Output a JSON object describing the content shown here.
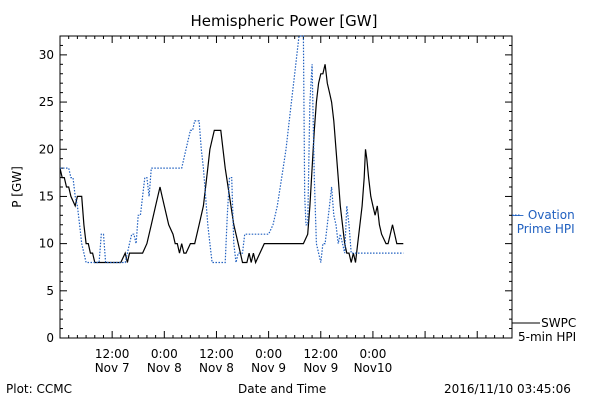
{
  "chart_data": {
    "type": "line",
    "title": "Hemispheric Power [GW]",
    "ylabel": "P [GW]",
    "xlabel": "Date and Time",
    "ylim": [
      0,
      32
    ],
    "xlim": [
      0,
      104
    ],
    "y_ticks": [
      "0",
      "5",
      "10",
      "15",
      "20",
      "25",
      "30"
    ],
    "x_tick_labels": [
      {
        "x": 12,
        "line1": "12:00",
        "line2": "Nov 7"
      },
      {
        "x": 24,
        "line1": "0:00",
        "line2": "Nov 8"
      },
      {
        "x": 36,
        "line1": "12:00",
        "line2": "Nov 8"
      },
      {
        "x": 48,
        "line1": "0:00",
        "line2": "Nov 9"
      },
      {
        "x": 60,
        "line1": "12:00",
        "line2": "Nov 9"
      },
      {
        "x": 72,
        "line1": "0:00",
        "line2": "Nov10"
      }
    ],
    "series": [
      {
        "name": "SWPC 5-min HPI",
        "color": "#000000",
        "style": "solid",
        "points": [
          [
            0,
            18
          ],
          [
            0.5,
            17
          ],
          [
            1,
            17
          ],
          [
            1.5,
            16
          ],
          [
            2,
            16
          ],
          [
            2.5,
            15
          ],
          [
            3.5,
            14
          ],
          [
            4,
            15
          ],
          [
            5,
            15
          ],
          [
            5.5,
            12
          ],
          [
            6,
            10
          ],
          [
            6.5,
            10
          ],
          [
            7,
            9
          ],
          [
            7.5,
            9
          ],
          [
            8,
            8
          ],
          [
            14,
            8
          ],
          [
            15,
            9
          ],
          [
            15.5,
            8
          ],
          [
            16,
            9
          ],
          [
            19,
            9
          ],
          [
            20,
            10
          ],
          [
            21,
            12
          ],
          [
            22,
            14
          ],
          [
            22.5,
            15
          ],
          [
            23,
            16
          ],
          [
            23.5,
            15
          ],
          [
            24,
            14
          ],
          [
            25,
            12
          ],
          [
            26,
            11
          ],
          [
            26.5,
            10
          ],
          [
            27,
            10
          ],
          [
            27.5,
            9
          ],
          [
            28,
            10
          ],
          [
            28.5,
            9
          ],
          [
            29,
            9
          ],
          [
            30,
            10
          ],
          [
            31,
            10
          ],
          [
            32,
            12
          ],
          [
            33,
            14
          ],
          [
            33.5,
            16
          ],
          [
            34,
            18
          ],
          [
            34.5,
            20
          ],
          [
            35,
            21
          ],
          [
            35.5,
            22
          ],
          [
            37,
            22
          ],
          [
            37.5,
            20
          ],
          [
            38,
            18
          ],
          [
            39,
            15
          ],
          [
            40,
            12
          ],
          [
            41,
            10
          ],
          [
            41.5,
            9
          ],
          [
            42,
            8
          ],
          [
            43,
            8
          ],
          [
            43.5,
            9
          ],
          [
            44,
            8
          ],
          [
            44.5,
            9
          ],
          [
            45,
            8
          ],
          [
            46,
            9
          ],
          [
            47,
            10
          ],
          [
            48,
            10
          ],
          [
            51,
            10
          ],
          [
            53,
            10
          ],
          [
            56,
            10
          ],
          [
            57,
            11
          ],
          [
            57.5,
            14
          ],
          [
            58,
            18
          ],
          [
            58.5,
            22
          ],
          [
            59,
            25
          ],
          [
            59.5,
            27
          ],
          [
            60,
            28
          ],
          [
            60.5,
            28
          ],
          [
            61,
            29
          ],
          [
            61.5,
            27
          ],
          [
            62,
            26
          ],
          [
            62.5,
            25
          ],
          [
            63,
            23
          ],
          [
            63.5,
            20
          ],
          [
            64,
            17
          ],
          [
            64.5,
            14
          ],
          [
            65,
            12
          ],
          [
            65.5,
            10
          ],
          [
            66,
            9
          ],
          [
            66.5,
            9
          ],
          [
            67,
            8
          ],
          [
            67.5,
            9
          ],
          [
            68,
            8
          ],
          [
            68.5,
            10
          ],
          [
            69,
            12
          ],
          [
            69.5,
            14
          ],
          [
            70,
            17
          ],
          [
            70.3,
            20
          ],
          [
            70.6,
            19
          ],
          [
            71,
            17
          ],
          [
            71.5,
            15
          ],
          [
            72,
            14
          ],
          [
            72.5,
            13
          ],
          [
            73,
            14
          ],
          [
            73.5,
            12
          ],
          [
            74,
            11
          ],
          [
            75,
            10
          ],
          [
            75.5,
            10
          ],
          [
            76,
            11
          ],
          [
            76.5,
            12
          ],
          [
            77,
            11
          ],
          [
            77.5,
            10
          ],
          [
            79,
            10
          ]
        ]
      },
      {
        "name": "Ovation Prime HPI",
        "color": "#2060c0",
        "style": "dotted",
        "points": [
          [
            0,
            18
          ],
          [
            2,
            18
          ],
          [
            2.5,
            17
          ],
          [
            3,
            17
          ],
          [
            3.5,
            15
          ],
          [
            4,
            14
          ],
          [
            4.5,
            12
          ],
          [
            5,
            10
          ],
          [
            5.5,
            9
          ],
          [
            6,
            8
          ],
          [
            9,
            8
          ],
          [
            9.5,
            11
          ],
          [
            10,
            11
          ],
          [
            10.5,
            8
          ],
          [
            11,
            8
          ],
          [
            15,
            8
          ],
          [
            15.5,
            9
          ],
          [
            16,
            10
          ],
          [
            16.5,
            11
          ],
          [
            17,
            11
          ],
          [
            17.5,
            10
          ],
          [
            18,
            13
          ],
          [
            18.5,
            13
          ],
          [
            19,
            15
          ],
          [
            19.5,
            17
          ],
          [
            20,
            17
          ],
          [
            20.5,
            15
          ],
          [
            21,
            18
          ],
          [
            28,
            18
          ],
          [
            29,
            20
          ],
          [
            30,
            22
          ],
          [
            30.5,
            22
          ],
          [
            31,
            23
          ],
          [
            32,
            23
          ],
          [
            32.5,
            20
          ],
          [
            33,
            18
          ],
          [
            33.5,
            15
          ],
          [
            34,
            12
          ],
          [
            34.5,
            10
          ],
          [
            35,
            8
          ],
          [
            38,
            8
          ],
          [
            38.5,
            13
          ],
          [
            39,
            17
          ],
          [
            39.5,
            17
          ],
          [
            40,
            10
          ],
          [
            40.5,
            8
          ],
          [
            41,
            9
          ],
          [
            42,
            9
          ],
          [
            42.5,
            11
          ],
          [
            43,
            11
          ],
          [
            48,
            11
          ],
          [
            49,
            12
          ],
          [
            50,
            14
          ],
          [
            51,
            17
          ],
          [
            52,
            20
          ],
          [
            53,
            24
          ],
          [
            54,
            28
          ],
          [
            55,
            32
          ],
          [
            56,
            32
          ],
          [
            56.3,
            15
          ],
          [
            56.6,
            12
          ],
          [
            57,
            12
          ],
          [
            57.5,
            25
          ],
          [
            58,
            29
          ],
          [
            58.5,
            17
          ],
          [
            59,
            10
          ],
          [
            59.5,
            9
          ],
          [
            60,
            8
          ],
          [
            60.5,
            10
          ],
          [
            61,
            10
          ],
          [
            61.5,
            12
          ],
          [
            62,
            14
          ],
          [
            62.5,
            16
          ],
          [
            63,
            13
          ],
          [
            63.5,
            12
          ],
          [
            64,
            10
          ],
          [
            64.5,
            11
          ],
          [
            65,
            10
          ],
          [
            65.5,
            9
          ],
          [
            66,
            14
          ],
          [
            66.5,
            12
          ],
          [
            67,
            9
          ],
          [
            79,
            9
          ]
        ]
      }
    ],
    "legend": [
      {
        "label_line1": "— Ovation",
        "label_line2": "Prime HPI",
        "color": "#2060c0"
      },
      {
        "label_line1": "SWPC",
        "label_line2": "5-min HPI",
        "color": "#000000"
      }
    ]
  },
  "footer": {
    "left": "Plot: CCMC",
    "center": "Date and Time",
    "right": "2016/11/10 03:45:06"
  }
}
